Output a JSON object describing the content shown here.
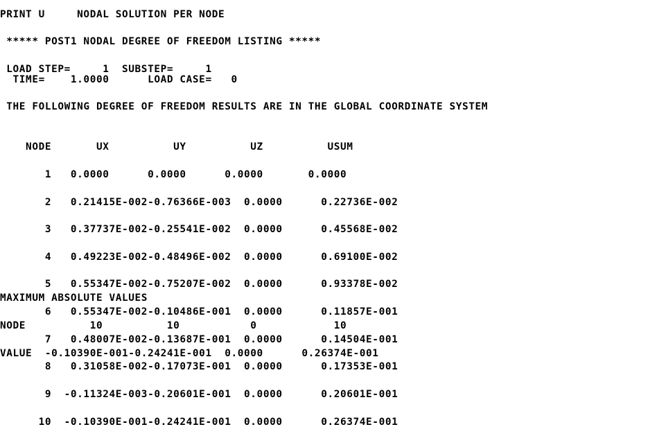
{
  "lines": {
    "command": "PRINT U     NODAL SOLUTION PER NODE",
    "banner": " ***** POST1 NODAL DEGREE OF FREEDOM LISTING *****",
    "load_step": " LOAD STEP=     1  SUBSTEP=     1",
    "time": "  TIME=    1.0000      LOAD CASE=   0",
    "coord_note": " THE FOLLOWING DEGREE OF FREEDOM RESULTS ARE IN THE GLOBAL COORDINATE SYSTEM"
  },
  "table": {
    "header": "    NODE       UX          UY          UZ          USUM",
    "rows": [
      "       1   0.0000      0.0000      0.0000       0.0000",
      "       2   0.21415E-002-0.76366E-003  0.0000      0.22736E-002",
      "       3   0.37737E-002-0.25541E-002  0.0000      0.45568E-002",
      "       4   0.49223E-002-0.48496E-002  0.0000      0.69100E-002",
      "       5   0.55347E-002-0.75207E-002  0.0000      0.93378E-002",
      "       6   0.55347E-002-0.10486E-001  0.0000      0.11857E-001",
      "       7   0.48007E-002-0.13687E-001  0.0000      0.14504E-001",
      "       8   0.31058E-002-0.17073E-001  0.0000      0.17353E-001",
      "       9  -0.11324E-003-0.20601E-001  0.0000      0.20601E-001",
      "      10  -0.10390E-001-0.24241E-001  0.0000      0.26374E-001"
    ]
  },
  "maximum": {
    "title": "MAXIMUM ABSOLUTE VALUES",
    "node": "NODE          10          10           0            10",
    "value": "VALUE  -0.10390E-001-0.24241E-001  0.0000      0.26374E-001"
  }
}
